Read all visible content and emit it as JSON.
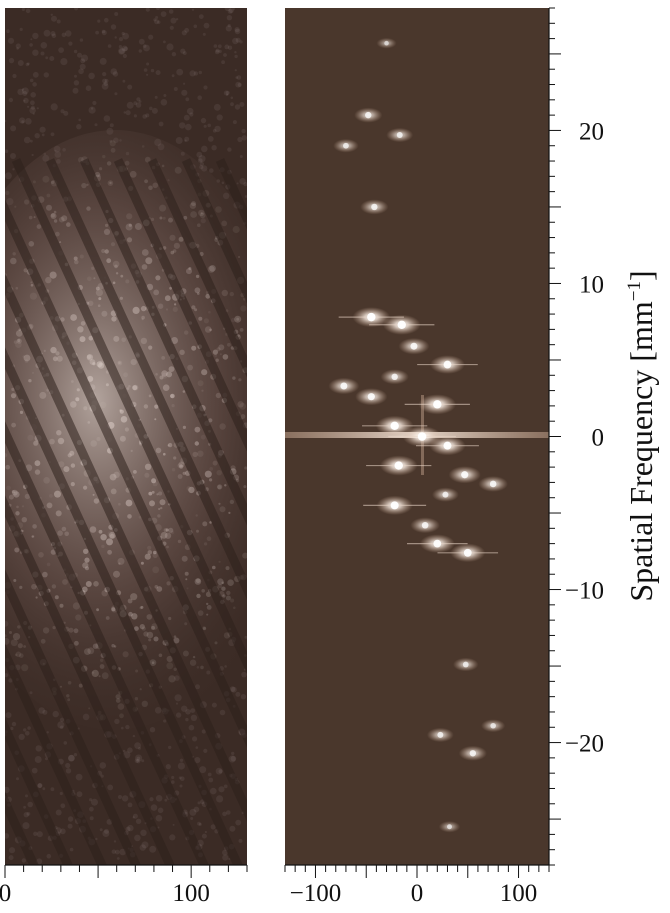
{
  "chart_data": [
    {
      "type": "heatmap",
      "name": "left-panel-image",
      "xlim": [
        0,
        130
      ],
      "x_tick_labels": [
        "0",
        "100"
      ],
      "x_tick_values": [
        0,
        100
      ],
      "colors": {
        "background": "#3a2a24",
        "speckle": "#e8ddd8",
        "fringe_dark": "#2e211c"
      }
    },
    {
      "type": "scatter",
      "name": "right-panel-spectrum",
      "xlim": [
        -130,
        130
      ],
      "ylim": [
        -28,
        28
      ],
      "x_tick_labels": [
        "−100",
        "0",
        "100"
      ],
      "x_tick_values": [
        -100,
        0,
        100
      ],
      "y_tick_labels": [
        "20",
        "10",
        "0",
        "−10",
        "−20"
      ],
      "y_tick_values": [
        20,
        10,
        0,
        -10,
        -20
      ],
      "ylabel_text": "Spatial Frequency [mm",
      "ylabel_sup": "−1",
      "ylabel_close": "]",
      "colors": {
        "background": "#4a372c",
        "spot": "#fff6ee",
        "streak": "#c9a993"
      },
      "points": [
        {
          "x": 5,
          "y": 0,
          "i": 1.0
        },
        {
          "x": -22,
          "y": 0.7,
          "i": 0.95
        },
        {
          "x": 30,
          "y": -0.6,
          "i": 0.9
        },
        {
          "x": 20,
          "y": 2.1,
          "i": 0.95
        },
        {
          "x": -18,
          "y": -1.9,
          "i": 0.95
        },
        {
          "x": 30,
          "y": 4.7,
          "i": 0.85
        },
        {
          "x": -45,
          "y": 2.6,
          "i": 0.75
        },
        {
          "x": -22,
          "y": 3.9,
          "i": 0.6
        },
        {
          "x": -72,
          "y": 3.3,
          "i": 0.7
        },
        {
          "x": -3,
          "y": 5.9,
          "i": 0.7
        },
        {
          "x": -15,
          "y": 7.3,
          "i": 0.95
        },
        {
          "x": -45,
          "y": 7.8,
          "i": 0.95
        },
        {
          "x": 47,
          "y": -2.5,
          "i": 0.75
        },
        {
          "x": 75,
          "y": -3.1,
          "i": 0.65
        },
        {
          "x": 28,
          "y": -3.8,
          "i": 0.55
        },
        {
          "x": -22,
          "y": -4.5,
          "i": 0.9
        },
        {
          "x": 8,
          "y": -5.8,
          "i": 0.65
        },
        {
          "x": 20,
          "y": -7.0,
          "i": 0.85
        },
        {
          "x": 50,
          "y": -7.6,
          "i": 0.85
        },
        {
          "x": -48,
          "y": 21.0,
          "i": 0.6
        },
        {
          "x": -17,
          "y": 19.7,
          "i": 0.55
        },
        {
          "x": -70,
          "y": 19.0,
          "i": 0.5
        },
        {
          "x": -42,
          "y": 15.0,
          "i": 0.6
        },
        {
          "x": -30,
          "y": 25.7,
          "i": 0.3
        },
        {
          "x": 48,
          "y": -14.9,
          "i": 0.5
        },
        {
          "x": 75,
          "y": -18.9,
          "i": 0.45
        },
        {
          "x": 23,
          "y": -19.5,
          "i": 0.55
        },
        {
          "x": 55,
          "y": -20.7,
          "i": 0.6
        },
        {
          "x": 32,
          "y": -25.5,
          "i": 0.35
        }
      ]
    }
  ]
}
